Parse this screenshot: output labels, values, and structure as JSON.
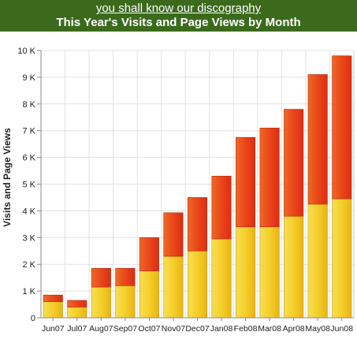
{
  "header": {
    "link_text": "you shall know our discography",
    "title": "This Year's Visits and Page Views by Month"
  },
  "chart_data": {
    "type": "bar",
    "stacked": true,
    "ylabel": "Visits and Page Views",
    "ylim": [
      0,
      10000
    ],
    "yticks": [
      {
        "value": 0,
        "label": "0"
      },
      {
        "value": 1000,
        "label": "1 K"
      },
      {
        "value": 2000,
        "label": "2 K"
      },
      {
        "value": 3000,
        "label": "3 K"
      },
      {
        "value": 4000,
        "label": "4 K"
      },
      {
        "value": 5000,
        "label": "5 K"
      },
      {
        "value": 6000,
        "label": "6 K"
      },
      {
        "value": 7000,
        "label": "7 K"
      },
      {
        "value": 8000,
        "label": "8 K"
      },
      {
        "value": 9000,
        "label": "9 K"
      },
      {
        "value": 10000,
        "label": "10 K"
      }
    ],
    "grid": true,
    "categories": [
      "Jun07",
      "Jul07",
      "Aug07",
      "Sep07",
      "Oct07",
      "Nov07",
      "Dec07",
      "Jan08",
      "Feb08",
      "Mar08",
      "Apr08",
      "May08",
      "Jun08"
    ],
    "series": [
      {
        "values": [
          600,
          400,
          1150,
          1200,
          1750,
          2300,
          2500,
          2950,
          3400,
          3400,
          3800,
          4250,
          4450
        ],
        "color": "#f2c51c"
      },
      {
        "values": [
          250,
          250,
          700,
          650,
          1250,
          1630,
          2000,
          2350,
          3350,
          3700,
          4000,
          4850,
          5350
        ],
        "color": "#e8401a"
      }
    ]
  }
}
